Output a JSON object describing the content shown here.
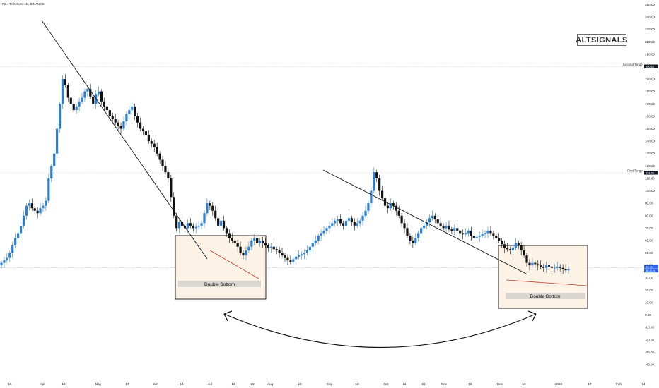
{
  "header": {
    "symbol": "FIL / TetherUS, 1D, BINANCE"
  },
  "watermark": {
    "text": "ALTSIGNALS"
  },
  "colors": {
    "up": "#2a7fd4",
    "down": "#111111",
    "trendline": "#111111",
    "wedge_red": "#c0392b",
    "box_fill": "#fdf2e6"
  },
  "chart_data": {
    "type": "candlestick",
    "title": "",
    "ylim": [
      -40,
      250
    ],
    "y_ticks": [
      250,
      240,
      230,
      220,
      210,
      200,
      190,
      180,
      170,
      160,
      150,
      140,
      130,
      120,
      110,
      100,
      90,
      80,
      70,
      60,
      50,
      40,
      30,
      20,
      10,
      0,
      -10,
      -20,
      -30,
      -40
    ],
    "y_tick_labels": [
      "250.00",
      "240.00",
      "230.00",
      "220.00",
      "210.00",
      "200.00",
      "190.00",
      "180.00",
      "170.00",
      "160.00",
      "150.00",
      "140.00",
      "130.00",
      "120.00",
      "110.00",
      "100.00",
      "90.00",
      "80.00",
      "70.00",
      "60.00",
      "50.00",
      "40.00",
      "30.00",
      "20.00",
      "10.00",
      "0.00",
      "-10.00",
      "-20.00",
      "-30.00",
      "-40.00"
    ],
    "x_tick_labels": [
      "15",
      "Apr",
      "12",
      "May",
      "17",
      "Jun",
      "14",
      "Jul",
      "12",
      "22",
      "Aug",
      "16",
      "Sep",
      "13",
      "Oct",
      "11",
      "21",
      "Nov",
      "15",
      "Dec",
      "13",
      "2022",
      "17",
      "Feb",
      "14"
    ],
    "current_price_label": "36.76",
    "current_price_sublabel": "38.11 ni",
    "series": [
      {
        "name": "FIL / TetherUS",
        "close": [
          42,
          44,
          46,
          50,
          56,
          62,
          66,
          72,
          80,
          88,
          90,
          86,
          84,
          82,
          86,
          88,
          92,
          110,
          120,
          130,
          150,
          170,
          190,
          185,
          175,
          170,
          165,
          168,
          172,
          175,
          180,
          182,
          176,
          170,
          178,
          180,
          172,
          168,
          165,
          160,
          158,
          155,
          152,
          150,
          156,
          162,
          165,
          168,
          160,
          155,
          150,
          148,
          145,
          140,
          138,
          135,
          130,
          125,
          120,
          115,
          110,
          95,
          80,
          70,
          75,
          72,
          70,
          74,
          72,
          70,
          71,
          72,
          74,
          82,
          90,
          88,
          84,
          78,
          72,
          76,
          70,
          66,
          62,
          60,
          58,
          55,
          50,
          48,
          52,
          55,
          60,
          62,
          58,
          60,
          58,
          56,
          54,
          55,
          53,
          52,
          50,
          48,
          46,
          44,
          43,
          45,
          47,
          48,
          49,
          50,
          52,
          55,
          58,
          60,
          64,
          66,
          68,
          70,
          72,
          74,
          76,
          77,
          74,
          72,
          76,
          78,
          75,
          72,
          74,
          76,
          80,
          84,
          90,
          100,
          115,
          110,
          100,
          94,
          88,
          86,
          90,
          88,
          84,
          80,
          74,
          70,
          64,
          60,
          58,
          62,
          66,
          70,
          72,
          75,
          78,
          80,
          77,
          74,
          72,
          70,
          72,
          69,
          68,
          70,
          68,
          66,
          65,
          66,
          68,
          64,
          62,
          63,
          64,
          65,
          66,
          68,
          66,
          64,
          62,
          60,
          57,
          54,
          53,
          52,
          54,
          58,
          56,
          52,
          48,
          42,
          40,
          42,
          41,
          40,
          39,
          38,
          40,
          39,
          38,
          38,
          39,
          38,
          37,
          36,
          37
        ]
      }
    ],
    "annotations": [
      {
        "type": "text",
        "text": "Second Target",
        "price": 200.0,
        "price_label": "200.00"
      },
      {
        "type": "text",
        "text": "First Target",
        "price": 114.5,
        "price_label": "114.50"
      },
      {
        "type": "box",
        "text": "Double Bottom",
        "note": "first consolidation"
      },
      {
        "type": "box",
        "text": "Double Bottom",
        "note": "second consolidation"
      }
    ]
  }
}
